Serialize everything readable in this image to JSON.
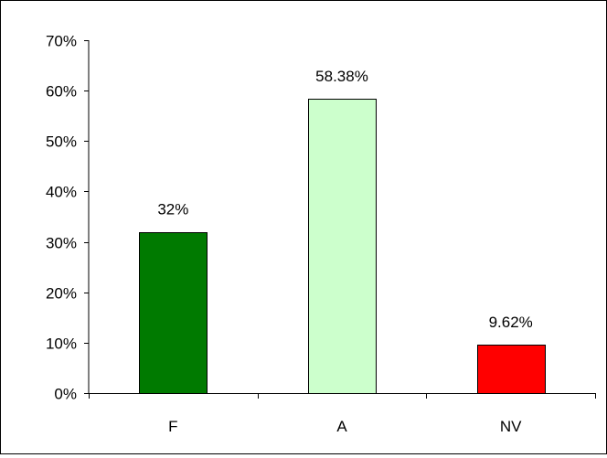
{
  "chart_data": {
    "type": "bar",
    "title": "",
    "xlabel": "",
    "ylabel": "",
    "categories": [
      "F",
      "A",
      "NV"
    ],
    "values": [
      32,
      58.38,
      9.62
    ],
    "data_labels": [
      "32%",
      "58.38%",
      "9.62%"
    ],
    "bar_colors": [
      "#007a00",
      "#ccffcc",
      "#ff0000"
    ],
    "ylim": [
      0,
      70
    ],
    "ytick_values": [
      0,
      10,
      20,
      30,
      40,
      50,
      60,
      70
    ],
    "ytick_labels": [
      "0%",
      "10%",
      "20%",
      "30%",
      "40%",
      "50%",
      "60%",
      "70%"
    ],
    "grid": false,
    "legend": "none"
  }
}
